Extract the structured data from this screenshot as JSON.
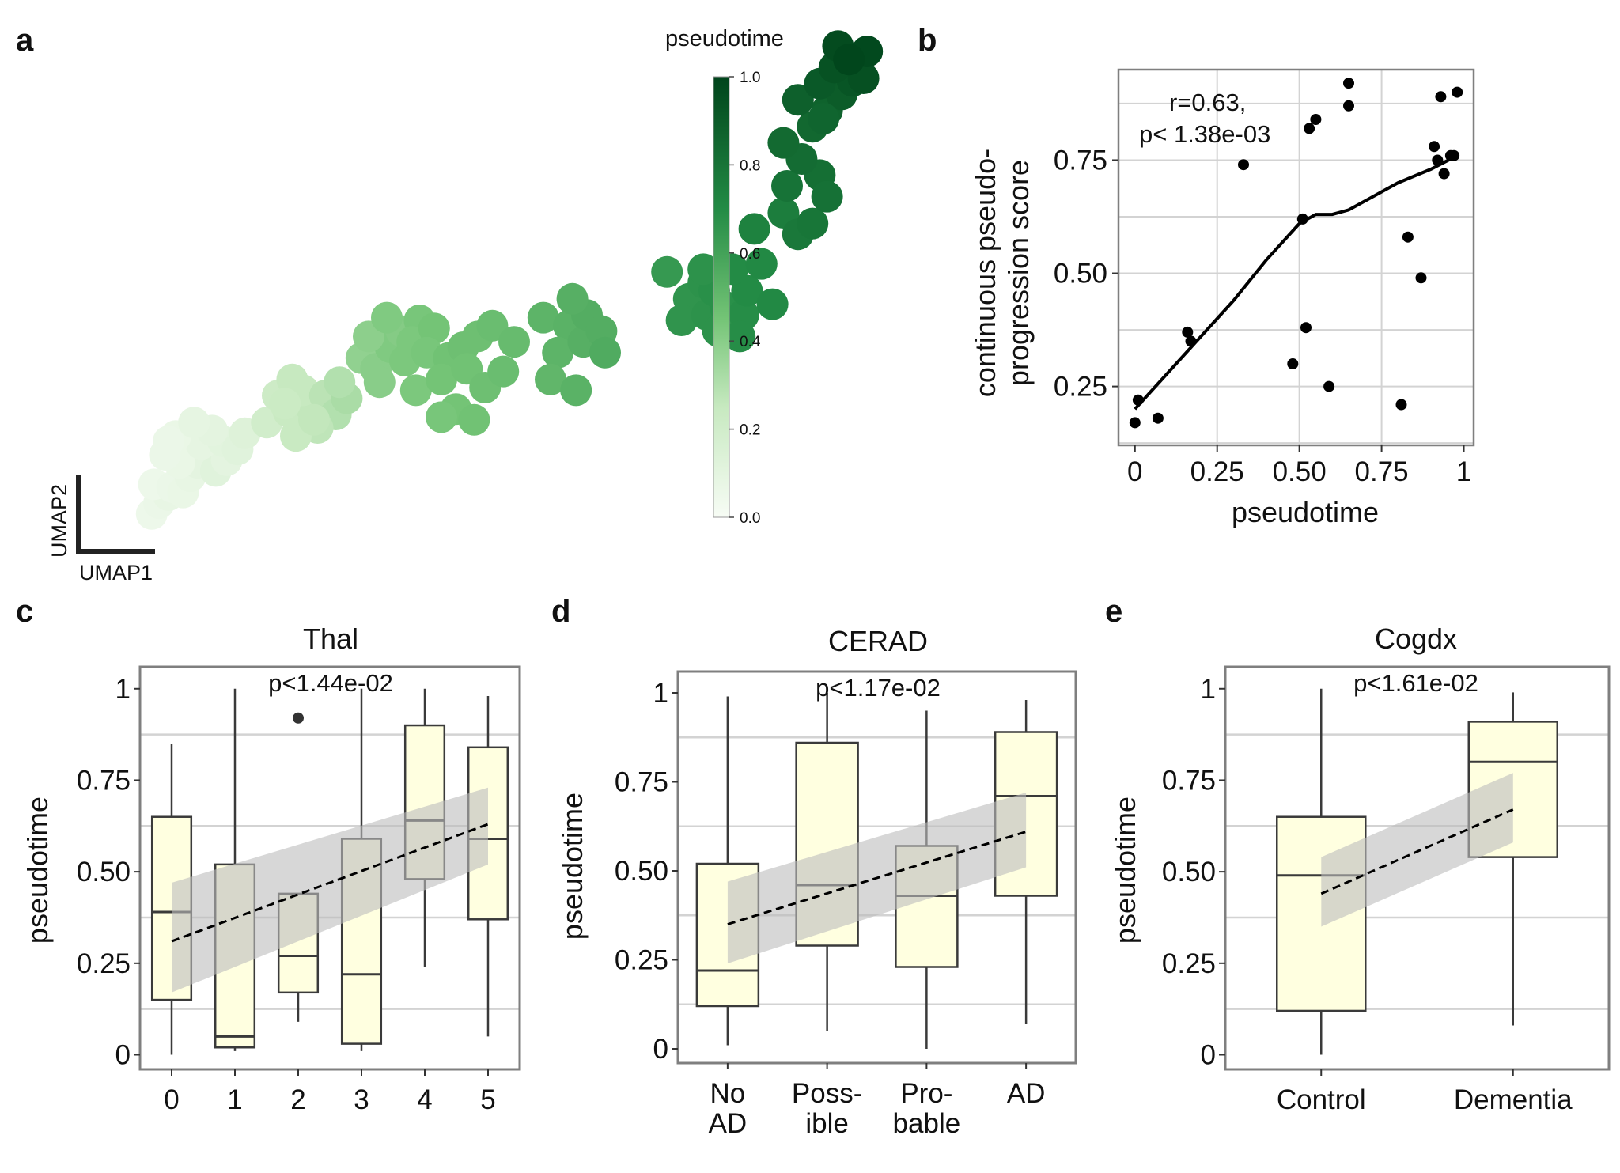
{
  "chart_data": [
    {
      "panel": "a",
      "type": "scatter",
      "xlabel": "UMAP1",
      "ylabel": "UMAP2",
      "colorbar": {
        "title": "pseudotime",
        "ticks": [
          "1.0",
          "0.8",
          "0.6",
          "0.4",
          "0.2",
          "0.0"
        ],
        "range": [
          0,
          1
        ],
        "color_low": "#f5fbf4",
        "color_high": "#00441b"
      },
      "points": [
        [
          0.02,
          -1.1,
          0.05
        ],
        [
          0.12,
          -0.9,
          0.06
        ],
        [
          0.25,
          -0.75,
          0.08
        ],
        [
          0.05,
          -0.55,
          0.05
        ],
        [
          0.3,
          -0.6,
          0.06
        ],
        [
          0.45,
          -0.7,
          0.07
        ],
        [
          0.55,
          -0.4,
          0.08
        ],
        [
          0.65,
          -0.15,
          0.1
        ],
        [
          0.9,
          -0.3,
          0.12
        ],
        [
          1.05,
          -0.1,
          0.1
        ],
        [
          0.4,
          -0.15,
          0.07
        ],
        [
          0.2,
          0.0,
          0.06
        ],
        [
          0.7,
          0.2,
          0.09
        ],
        [
          1.0,
          0.25,
          0.11
        ],
        [
          0.85,
          0.45,
          0.1
        ],
        [
          1.2,
          0.1,
          0.12
        ],
        [
          0.35,
          0.35,
          0.07
        ],
        [
          1.3,
          0.4,
          0.13
        ],
        [
          0.6,
          0.6,
          0.09
        ],
        [
          0.25,
          0.25,
          0.06
        ],
        [
          1.6,
          0.6,
          0.2
        ],
        [
          1.9,
          0.8,
          0.24
        ],
        [
          2.2,
          0.9,
          0.26
        ],
        [
          1.75,
          1.1,
          0.22
        ],
        [
          2.1,
          1.2,
          0.25
        ],
        [
          2.4,
          1.1,
          0.28
        ],
        [
          1.95,
          1.4,
          0.25
        ],
        [
          2.55,
          0.75,
          0.3
        ],
        [
          2.3,
          0.5,
          0.27
        ],
        [
          2.0,
          0.35,
          0.24
        ],
        [
          2.7,
          1.05,
          0.32
        ],
        [
          1.85,
          0.95,
          0.23
        ],
        [
          2.25,
          0.65,
          0.26
        ],
        [
          2.6,
          1.35,
          0.3
        ],
        [
          2.9,
          1.8,
          0.38
        ],
        [
          3.1,
          1.6,
          0.4
        ],
        [
          3.3,
          2.0,
          0.42
        ],
        [
          3.5,
          1.75,
          0.43
        ],
        [
          3.0,
          2.2,
          0.39
        ],
        [
          3.45,
          2.3,
          0.41
        ],
        [
          3.7,
          2.5,
          0.44
        ],
        [
          3.25,
          2.55,
          0.42
        ],
        [
          3.6,
          2.1,
          0.43
        ],
        [
          3.9,
          2.35,
          0.45
        ],
        [
          3.8,
          1.9,
          0.44
        ],
        [
          3.15,
          1.35,
          0.4
        ],
        [
          3.65,
          1.2,
          0.43
        ],
        [
          4.1,
          1.8,
          0.46
        ],
        [
          4.3,
          2.0,
          0.47
        ],
        [
          4.5,
          2.2,
          0.47
        ],
        [
          4.0,
          1.4,
          0.45
        ],
        [
          4.35,
          1.6,
          0.46
        ],
        [
          4.7,
          2.4,
          0.48
        ],
        [
          4.2,
          0.85,
          0.45
        ],
        [
          4.45,
          0.65,
          0.46
        ],
        [
          4.0,
          0.7,
          0.44
        ],
        [
          4.6,
          1.25,
          0.47
        ],
        [
          4.85,
          1.55,
          0.48
        ],
        [
          5.0,
          2.1,
          0.49
        ],
        [
          5.4,
          2.55,
          0.52
        ],
        [
          5.75,
          2.4,
          0.53
        ],
        [
          5.6,
          1.9,
          0.52
        ],
        [
          5.95,
          2.1,
          0.54
        ],
        [
          5.5,
          1.4,
          0.51
        ],
        [
          5.85,
          1.2,
          0.53
        ],
        [
          6.0,
          2.6,
          0.55
        ],
        [
          6.2,
          2.3,
          0.55
        ],
        [
          5.8,
          2.9,
          0.54
        ],
        [
          6.25,
          1.9,
          0.56
        ],
        [
          7.1,
          3.4,
          0.64
        ],
        [
          7.4,
          2.9,
          0.66
        ],
        [
          7.6,
          3.2,
          0.67
        ],
        [
          7.3,
          2.5,
          0.66
        ],
        [
          7.65,
          2.6,
          0.67
        ],
        [
          7.9,
          2.75,
          0.68
        ],
        [
          8.15,
          2.6,
          0.69
        ],
        [
          7.75,
          3.05,
          0.68
        ],
        [
          8.2,
          3.05,
          0.7
        ],
        [
          8.0,
          3.45,
          0.7
        ],
        [
          7.8,
          2.3,
          0.67
        ],
        [
          8.1,
          2.2,
          0.69
        ],
        [
          7.6,
          3.45,
          0.67
        ],
        [
          8.4,
          3.55,
          0.71
        ],
        [
          8.55,
          2.8,
          0.71
        ],
        [
          8.3,
          4.2,
          0.74
        ],
        [
          8.7,
          4.5,
          0.76
        ],
        [
          8.9,
          4.1,
          0.78
        ],
        [
          9.1,
          4.3,
          0.79
        ],
        [
          8.75,
          5.0,
          0.8
        ],
        [
          9.2,
          5.2,
          0.82
        ],
        [
          8.95,
          5.5,
          0.83
        ],
        [
          9.3,
          4.8,
          0.81
        ],
        [
          8.7,
          5.8,
          0.84
        ],
        [
          9.1,
          6.1,
          0.85
        ],
        [
          9.3,
          6.4,
          0.87
        ],
        [
          8.9,
          6.6,
          0.88
        ],
        [
          9.5,
          6.7,
          0.9
        ],
        [
          9.2,
          6.9,
          0.91
        ],
        [
          9.65,
          6.95,
          0.93
        ],
        [
          9.4,
          7.2,
          0.94
        ],
        [
          9.8,
          7.0,
          0.95
        ],
        [
          9.45,
          7.6,
          0.97
        ],
        [
          9.85,
          7.5,
          0.98
        ],
        [
          9.6,
          7.35,
          0.99
        ],
        [
          9.25,
          6.25,
          0.86
        ]
      ]
    },
    {
      "panel": "b",
      "type": "scatter",
      "xlabel": "pseudotime",
      "ylabel": [
        "continuous pseudo-",
        "progression score"
      ],
      "annotation": [
        "r=0.63,",
        "p< 1.38e-03"
      ],
      "xlim": [
        -0.05,
        1.03
      ],
      "ylim": [
        0.12,
        0.95
      ],
      "xticks": [
        0,
        0.25,
        0.5,
        0.75,
        1
      ],
      "xticklabels": [
        "0",
        "0.25",
        "0.50",
        "0.75",
        "1"
      ],
      "yticks": [
        0.25,
        0.5,
        0.75
      ],
      "yticklabels": [
        "0.25",
        "0.50",
        "0.75"
      ],
      "x": [
        0.0,
        0.01,
        0.07,
        0.16,
        0.17,
        0.33,
        0.48,
        0.51,
        0.52,
        0.53,
        0.55,
        0.59,
        0.65,
        0.65,
        0.81,
        0.83,
        0.87,
        0.91,
        0.92,
        0.93,
        0.94,
        0.96,
        0.97,
        0.98
      ],
      "y": [
        0.17,
        0.22,
        0.18,
        0.37,
        0.35,
        0.74,
        0.3,
        0.62,
        0.38,
        0.82,
        0.84,
        0.25,
        0.92,
        0.87,
        0.21,
        0.58,
        0.49,
        0.78,
        0.75,
        0.89,
        0.72,
        0.76,
        0.76,
        0.9
      ],
      "trend": {
        "x": [
          0.0,
          0.1,
          0.2,
          0.3,
          0.4,
          0.5,
          0.55,
          0.6,
          0.65,
          0.7,
          0.8,
          0.9,
          0.98
        ],
        "y": [
          0.2,
          0.28,
          0.36,
          0.44,
          0.53,
          0.61,
          0.63,
          0.63,
          0.64,
          0.66,
          0.7,
          0.73,
          0.76
        ]
      }
    },
    {
      "panel": "c",
      "type": "box",
      "title": "Thal",
      "ylabel": "pseudotime",
      "annotation": "p<1.44e-02",
      "ylim": [
        -0.04,
        1.06
      ],
      "yticks": [
        0,
        0.25,
        0.5,
        0.75,
        1
      ],
      "yticklabels": [
        "0",
        "0.25",
        "0.50",
        "0.75",
        "1"
      ],
      "categories": [
        [
          "0"
        ],
        [
          "1"
        ],
        [
          "2"
        ],
        [
          "3"
        ],
        [
          "4"
        ],
        [
          "5"
        ]
      ],
      "boxes": [
        {
          "min": 0.0,
          "q1": 0.15,
          "median": 0.39,
          "q3": 0.65,
          "max": 0.85
        },
        {
          "min": 0.01,
          "q1": 0.02,
          "median": 0.05,
          "q3": 0.52,
          "max": 1.0
        },
        {
          "min": 0.09,
          "q1": 0.17,
          "median": 0.27,
          "q3": 0.44,
          "max": 0.44,
          "outliers": [
            0.92
          ]
        },
        {
          "min": 0.01,
          "q1": 0.03,
          "median": 0.22,
          "q3": 0.59,
          "max": 1.0
        },
        {
          "min": 0.24,
          "q1": 0.48,
          "median": 0.64,
          "q3": 0.9,
          "max": 1.0
        },
        {
          "min": 0.05,
          "q1": 0.37,
          "median": 0.59,
          "q3": 0.84,
          "max": 0.98
        }
      ],
      "fit": {
        "y_start": 0.31,
        "y_end": 0.63,
        "band_start": [
          0.17,
          0.47
        ],
        "band_end": [
          0.52,
          0.73
        ]
      }
    },
    {
      "panel": "d",
      "type": "box",
      "title": "CERAD",
      "ylabel": "pseudotime",
      "annotation": "p<1.17e-02",
      "ylim": [
        -0.04,
        1.06
      ],
      "yticks": [
        0,
        0.25,
        0.5,
        0.75,
        1
      ],
      "yticklabels": [
        "0",
        "0.25",
        "0.50",
        "0.75",
        "1"
      ],
      "categories": [
        [
          "No",
          "AD"
        ],
        [
          "Poss-",
          "ible"
        ],
        [
          "Pro-",
          "bable"
        ],
        [
          "AD"
        ]
      ],
      "boxes": [
        {
          "min": 0.01,
          "q1": 0.12,
          "median": 0.22,
          "q3": 0.52,
          "max": 0.99
        },
        {
          "min": 0.05,
          "q1": 0.29,
          "median": 0.46,
          "q3": 0.86,
          "max": 1.0
        },
        {
          "min": 0.0,
          "q1": 0.23,
          "median": 0.43,
          "q3": 0.57,
          "max": 0.95
        },
        {
          "min": 0.07,
          "q1": 0.43,
          "median": 0.71,
          "q3": 0.89,
          "max": 0.98
        }
      ],
      "fit": {
        "y_start": 0.35,
        "y_end": 0.61,
        "band_start": [
          0.24,
          0.47
        ],
        "band_end": [
          0.51,
          0.72
        ]
      }
    },
    {
      "panel": "e",
      "type": "box",
      "title": "Cogdx",
      "ylabel": "pseudotime",
      "annotation": "p<1.61e-02",
      "ylim": [
        -0.04,
        1.06
      ],
      "yticks": [
        0,
        0.25,
        0.5,
        0.75,
        1
      ],
      "yticklabels": [
        "0",
        "0.25",
        "0.50",
        "0.75",
        "1"
      ],
      "categories": [
        [
          "Control"
        ],
        [
          "Dementia"
        ]
      ],
      "boxes": [
        {
          "min": 0.0,
          "q1": 0.12,
          "median": 0.49,
          "q3": 0.65,
          "max": 1.0
        },
        {
          "min": 0.08,
          "q1": 0.54,
          "median": 0.8,
          "q3": 0.91,
          "max": 0.99
        }
      ],
      "fit": {
        "y_start": 0.44,
        "y_end": 0.67,
        "band_start": [
          0.35,
          0.54
        ],
        "band_end": [
          0.58,
          0.77
        ]
      }
    }
  ],
  "panel_letters": [
    "a",
    "b",
    "c",
    "d",
    "e"
  ],
  "colors": {
    "box_fill": "#ffffe0",
    "box_stroke": "#3a3a3a",
    "band_fill": "#bdbdbd",
    "grid": "#d3d3d3",
    "frame": "#7f7f7f",
    "point": "#000000"
  }
}
